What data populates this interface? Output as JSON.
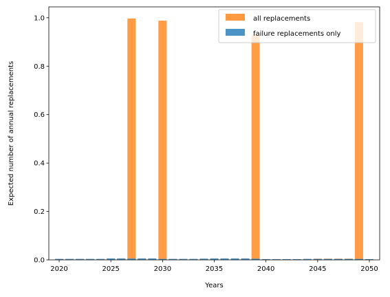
{
  "chart_data": {
    "type": "bar",
    "title": "",
    "xlabel": "Years",
    "ylabel": "Expected number of annual replacements",
    "xlim": [
      2019,
      2051
    ],
    "ylim": [
      0,
      1.045
    ],
    "x_ticks": [
      2020,
      2025,
      2030,
      2035,
      2040,
      2045,
      2050
    ],
    "x_tick_labels": [
      "2020",
      "2025",
      "2030",
      "2035",
      "2040",
      "2045",
      "2050"
    ],
    "y_ticks": [
      0.0,
      0.2,
      0.4,
      0.6,
      0.8,
      1.0
    ],
    "y_tick_labels": [
      "0.0",
      "0.2",
      "0.4",
      "0.6",
      "0.8",
      "1.0"
    ],
    "grid": false,
    "legend_position": "top-right",
    "x": [
      2020,
      2021,
      2022,
      2023,
      2024,
      2025,
      2026,
      2027,
      2028,
      2029,
      2030,
      2031,
      2032,
      2033,
      2034,
      2035,
      2036,
      2037,
      2038,
      2039,
      2040,
      2041,
      2042,
      2043,
      2044,
      2045,
      2046,
      2047,
      2048,
      2049,
      2050
    ],
    "series": [
      {
        "name": "all replacements",
        "color": "#ff993f",
        "values": [
          0.004,
          0.004,
          0.004,
          0.004,
          0.004,
          0.006,
          0.006,
          0.997,
          0.006,
          0.006,
          0.988,
          0.004,
          0.004,
          0.004,
          0.005,
          0.006,
          0.006,
          0.006,
          0.006,
          0.93,
          0.003,
          0.003,
          0.003,
          0.003,
          0.004,
          0.005,
          0.005,
          0.005,
          0.005,
          0.982,
          0.003
        ]
      },
      {
        "name": "failure replacements only",
        "color": "#4d94c6",
        "values": [
          0.004,
          0.004,
          0.004,
          0.004,
          0.004,
          0.006,
          0.006,
          0.006,
          0.006,
          0.006,
          0.004,
          0.004,
          0.004,
          0.004,
          0.005,
          0.006,
          0.006,
          0.006,
          0.006,
          0.005,
          0.003,
          0.003,
          0.003,
          0.003,
          0.004,
          0.004,
          0.004,
          0.004,
          0.004,
          0.004,
          0.003
        ]
      }
    ]
  }
}
